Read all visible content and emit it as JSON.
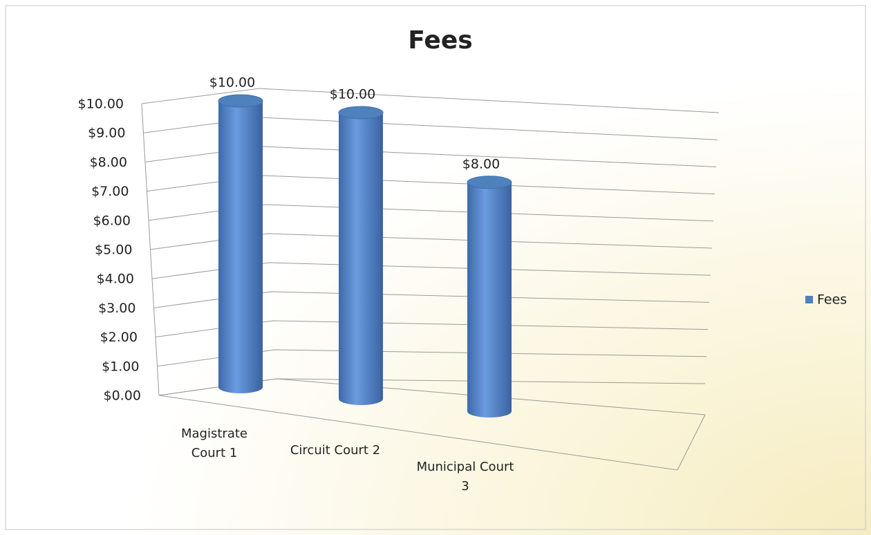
{
  "chart_data": {
    "type": "bar",
    "title": "Fees",
    "categories": [
      "Magistrate Court 1",
      "Circuit Court 2",
      "Municipal Court 3"
    ],
    "series": [
      {
        "name": "Fees",
        "color": "#4f81bd",
        "values": [
          10,
          10,
          8
        ],
        "value_labels": [
          "$10.00",
          "$10.00",
          "$8.00"
        ]
      }
    ],
    "ylim": [
      0,
      10
    ],
    "yticks": [
      {
        "value": 0,
        "label": "$0.00"
      },
      {
        "value": 1,
        "label": "$1.00"
      },
      {
        "value": 2,
        "label": "$2.00"
      },
      {
        "value": 3,
        "label": "$3.00"
      },
      {
        "value": 4,
        "label": "$4.00"
      },
      {
        "value": 5,
        "label": "$5.00"
      },
      {
        "value": 6,
        "label": "$6.00"
      },
      {
        "value": 7,
        "label": "$7.00"
      },
      {
        "value": 8,
        "label": "$8.00"
      },
      {
        "value": 9,
        "label": "$9.00"
      },
      {
        "value": 10,
        "label": "$10.00"
      }
    ],
    "grid": true,
    "legend": "right"
  }
}
